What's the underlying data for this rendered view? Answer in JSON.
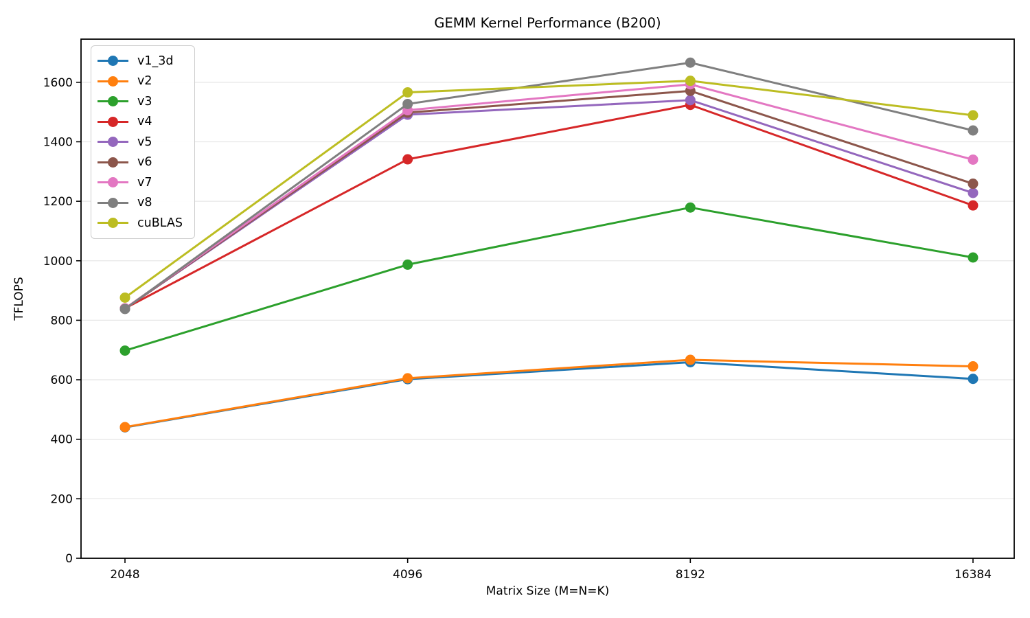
{
  "chart_data": {
    "type": "line",
    "title": "GEMM Kernel Performance (B200)",
    "xlabel": "Matrix Size (M=N=K)",
    "ylabel": "TFLOPS",
    "x": [
      2048,
      4096,
      8192,
      16384
    ],
    "xticklabels": [
      "2048",
      "4096",
      "8192",
      "16384"
    ],
    "yticks": [
      0,
      200,
      400,
      600,
      800,
      1000,
      1200,
      1400,
      1600
    ],
    "ylim": [
      0,
      1745
    ],
    "grid": "horizontal",
    "grid_color": "#e7e7e7",
    "legend_position": "upper-left",
    "series": [
      {
        "name": "v1_3d",
        "color": "#1f77b4",
        "values": [
          440,
          602,
          659,
          603
        ]
      },
      {
        "name": "v2",
        "color": "#ff7f0e",
        "values": [
          441,
          605,
          667,
          645
        ]
      },
      {
        "name": "v3",
        "color": "#2ca02c",
        "values": [
          698,
          987,
          1179,
          1011
        ]
      },
      {
        "name": "v4",
        "color": "#d62728",
        "values": [
          840,
          1341,
          1524,
          1186
        ]
      },
      {
        "name": "v5",
        "color": "#9467bd",
        "values": [
          839,
          1491,
          1540,
          1228
        ]
      },
      {
        "name": "v6",
        "color": "#8c564b",
        "values": [
          839,
          1498,
          1571,
          1259
        ]
      },
      {
        "name": "v7",
        "color": "#e377c2",
        "values": [
          840,
          1506,
          1593,
          1340
        ]
      },
      {
        "name": "v8",
        "color": "#7f7f7f",
        "values": [
          838,
          1527,
          1666,
          1438
        ]
      },
      {
        "name": "cuBLAS",
        "color": "#bcbd22",
        "values": [
          876,
          1566,
          1605,
          1489
        ]
      }
    ]
  }
}
